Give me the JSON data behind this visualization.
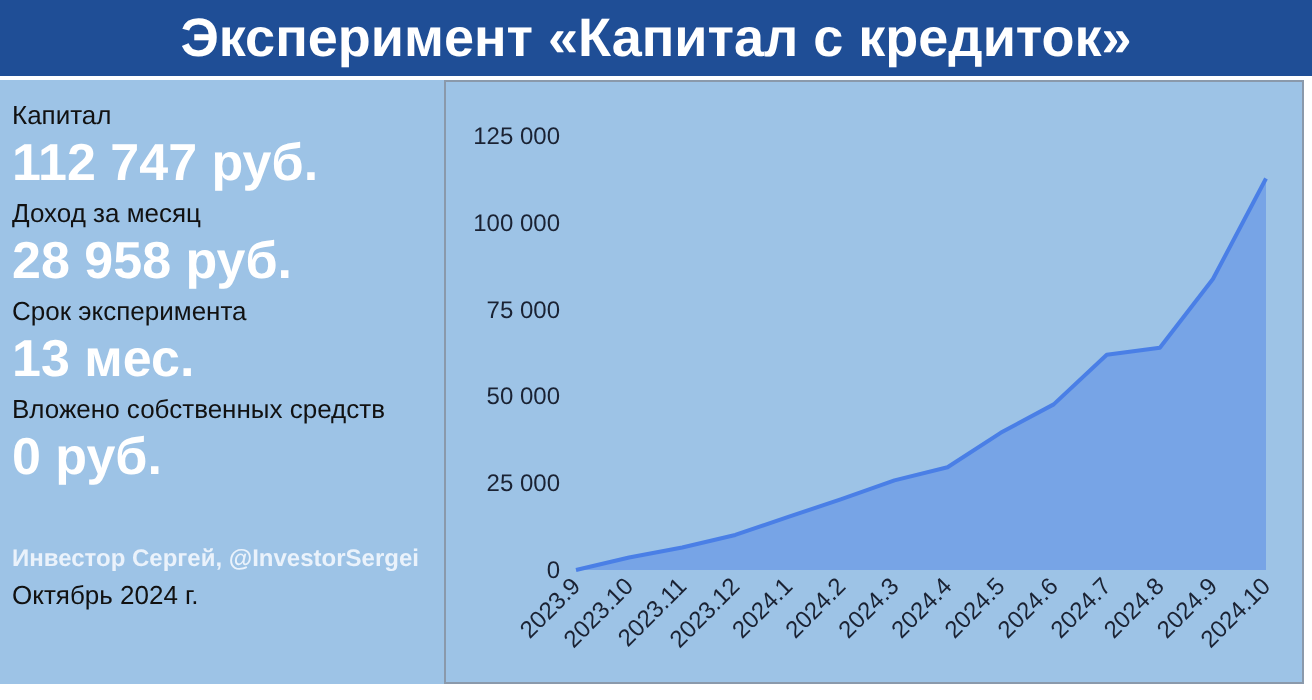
{
  "chart_data": {
    "type": "area",
    "title": "Эксперимент «Капитал с кредиток»",
    "categories": [
      "2023.9",
      "2023.10",
      "2023.11",
      "2023.12",
      "2024.1",
      "2024.2",
      "2024.3",
      "2024.4",
      "2024.5",
      "2024.6",
      "2024.7",
      "2024.8",
      "2024.9",
      "2024.10"
    ],
    "series": [
      {
        "color": "#4a7fe6",
        "values": [
          0,
          3600,
          6500,
          10100,
          15300,
          20400,
          25800,
          29600,
          39500,
          47700,
          62000,
          64000,
          83800,
          112747
        ]
      }
    ],
    "ylim": [
      0,
      125000
    ],
    "yticks": [
      0,
      25000,
      50000,
      75000,
      100000,
      125000
    ],
    "grid": false,
    "annotations": [
      "Капитал",
      "112 747 руб.",
      "Доход за месяц",
      "28 958 руб.",
      "Срок эксперимента",
      "13 мес.",
      "Вложено собственных средств",
      "0 руб.",
      "Инвестор Сергей, @InvestorSergei",
      "Октябрь 2024 г."
    ]
  }
}
